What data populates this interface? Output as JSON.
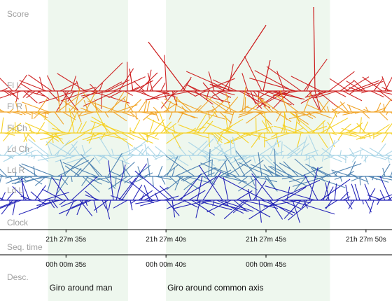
{
  "chart_data": {
    "type": "glyph-timeline",
    "rows": [
      "Score",
      "Fl L",
      "Fl R",
      "Fl Ch",
      "Ld Ch",
      "Ld R",
      "Ld L",
      "Clock",
      "Seq. time",
      "Desc."
    ],
    "series": [
      {
        "name": "Fl L",
        "color": "#cc1a1a"
      },
      {
        "name": "Fl R",
        "color": "#f0a020"
      },
      {
        "name": "Fl Ch",
        "color": "#f5d020"
      },
      {
        "name": "Ld Ch",
        "color": "#a8d4e6"
      },
      {
        "name": "Ld R",
        "color": "#4a7fb0"
      },
      {
        "name": "Ld L",
        "color": "#1a1ab4"
      }
    ],
    "clock_axis": {
      "ticks": [
        "21h 27m 35s",
        "21h 27m 40s",
        "21h 27m 45s",
        "21h 27m 50s"
      ],
      "values_s": [
        35,
        40,
        45,
        50
      ]
    },
    "seq_axis": {
      "ticks": [
        "00h 00m 30s",
        "00h 00m 35s",
        "00h 00m 40s",
        "00h 00m 45s"
      ],
      "values_s": [
        30,
        35,
        40,
        45
      ]
    },
    "x_range_s": [
      31.7,
      51.3
    ],
    "annotations": [
      {
        "label": "Giro around man",
        "start_s": 34.1,
        "end_s": 38.1
      },
      {
        "label": "Giro around common axis",
        "start_s": 40.0,
        "end_s": 48.2
      }
    ],
    "band_color": "#eef7ee"
  }
}
